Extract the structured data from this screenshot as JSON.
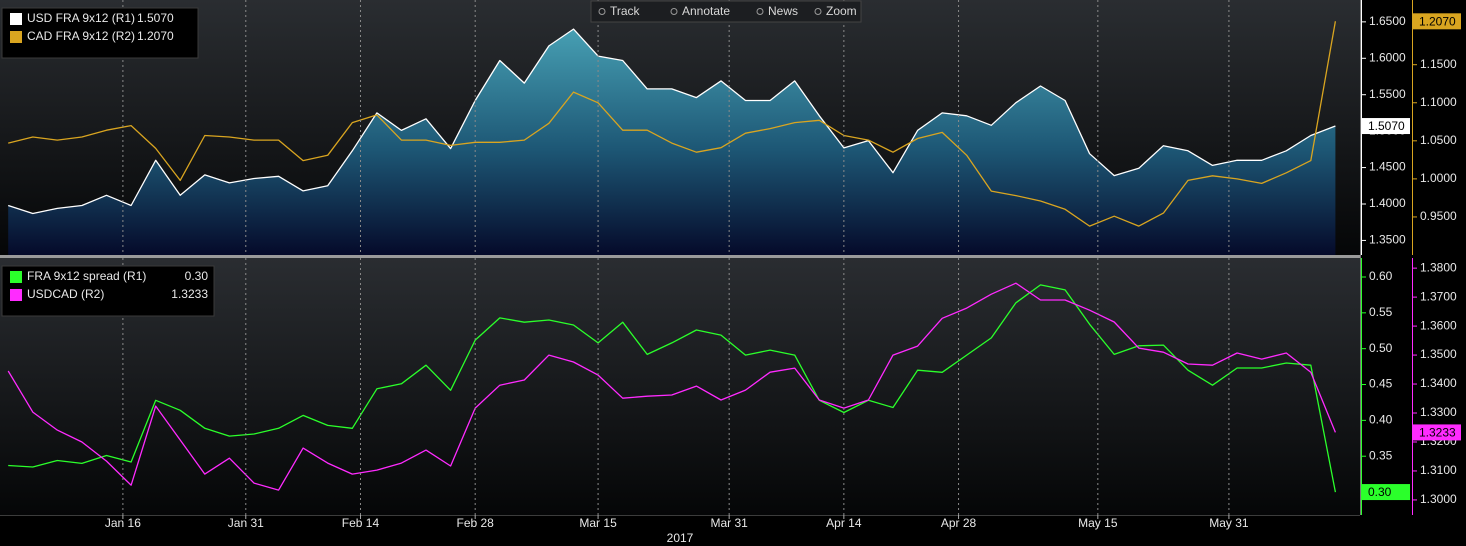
{
  "toolbar": [
    "Track",
    "Annotate",
    "News",
    "Zoom"
  ],
  "chart_data": [
    {
      "type": "line",
      "x": [
        "2017-01-02",
        "2017-01-05",
        "2017-01-08",
        "2017-01-11",
        "2017-01-14",
        "2017-01-17",
        "2017-01-20",
        "2017-01-23",
        "2017-01-26",
        "2017-01-29",
        "2017-02-01",
        "2017-02-04",
        "2017-02-07",
        "2017-02-10",
        "2017-02-13",
        "2017-02-16",
        "2017-02-19",
        "2017-02-22",
        "2017-02-25",
        "2017-02-28",
        "2017-03-03",
        "2017-03-06",
        "2017-03-09",
        "2017-03-12",
        "2017-03-15",
        "2017-03-18",
        "2017-03-21",
        "2017-03-24",
        "2017-03-27",
        "2017-03-30",
        "2017-04-02",
        "2017-04-05",
        "2017-04-08",
        "2017-04-11",
        "2017-04-14",
        "2017-04-17",
        "2017-04-20",
        "2017-04-23",
        "2017-04-26",
        "2017-04-29",
        "2017-05-02",
        "2017-05-05",
        "2017-05-08",
        "2017-05-11",
        "2017-05-14",
        "2017-05-17",
        "2017-05-20",
        "2017-05-23",
        "2017-05-26",
        "2017-05-29",
        "2017-06-01",
        "2017-06-04",
        "2017-06-07",
        "2017-06-10",
        "2017-06-13"
      ],
      "xlim": [
        "2017-01-01",
        "2017-06-16"
      ],
      "xticks": [
        "2017-01-16",
        "2017-01-31",
        "2017-02-14",
        "2017-02-28",
        "2017-03-15",
        "2017-03-31",
        "2017-04-14",
        "2017-04-28",
        "2017-05-15",
        "2017-05-31"
      ],
      "ylim": [
        1.33,
        1.68
      ],
      "yticks": [
        {
          "value": 1.35,
          "label": "1.3500"
        },
        {
          "value": 1.4,
          "label": "1.4000"
        },
        {
          "value": 1.45,
          "label": "1.4500"
        },
        {
          "value": 1.5,
          "label": "1.5000"
        },
        {
          "value": 1.55,
          "label": "1.5500"
        },
        {
          "value": 1.6,
          "label": "1.6000"
        },
        {
          "value": 1.65,
          "label": "1.6500"
        }
      ],
      "y2lim": [
        0.9,
        1.235
      ],
      "y2ticks": [
        {
          "value": 0.95,
          "label": "0.9500"
        },
        {
          "value": 1.0,
          "label": "1.0000"
        },
        {
          "value": 1.05,
          "label": "1.0500"
        },
        {
          "value": 1.1,
          "label": "1.1000"
        },
        {
          "value": 1.15,
          "label": "1.1500"
        }
      ],
      "grid": true,
      "series": [
        {
          "name": "USD FRA 9x12 (R1)",
          "color": "#ffffff",
          "area": true,
          "values": [
            1.398,
            1.387,
            1.394,
            1.398,
            1.412,
            1.398,
            1.46,
            1.412,
            1.44,
            1.429,
            1.435,
            1.438,
            1.418,
            1.425,
            1.473,
            1.525,
            1.501,
            1.517,
            1.476,
            1.542,
            1.597,
            1.566,
            1.617,
            1.64,
            1.603,
            1.597,
            1.558,
            1.558,
            1.546,
            1.569,
            1.542,
            1.542,
            1.569,
            1.521,
            1.477,
            1.487,
            1.443,
            1.501,
            1.525,
            1.521,
            1.508,
            1.539,
            1.562,
            1.542,
            1.469,
            1.439,
            1.449,
            1.48,
            1.473,
            1.453,
            1.46,
            1.46,
            1.473,
            1.494,
            1.507
          ],
          "value_labels": [
            null,
            null,
            null,
            null,
            null,
            null,
            null,
            null,
            null,
            null,
            null,
            null,
            null,
            null,
            null,
            null,
            null,
            null,
            null,
            null,
            null,
            null,
            null,
            null,
            null,
            null,
            null,
            null,
            null,
            null,
            null,
            null,
            null,
            null,
            null,
            null,
            null,
            null,
            null,
            null,
            null,
            null,
            null,
            null,
            null,
            null,
            null,
            null,
            null,
            null,
            null,
            null,
            null,
            null,
            "1.5070"
          ]
        },
        {
          "name": "CAD FRA 9x12 (R2)",
          "color": "#d9a520",
          "axis": "y2",
          "values": [
            1.047,
            1.055,
            1.051,
            1.055,
            1.064,
            1.07,
            1.04,
            0.998,
            1.057,
            1.055,
            1.051,
            1.051,
            1.024,
            1.031,
            1.074,
            1.084,
            1.051,
            1.051,
            1.044,
            1.048,
            1.048,
            1.051,
            1.073,
            1.114,
            1.1,
            1.064,
            1.064,
            1.047,
            1.035,
            1.041,
            1.06,
            1.066,
            1.074,
            1.077,
            1.057,
            1.051,
            1.035,
            1.053,
            1.061,
            1.031,
            0.984,
            0.978,
            0.971,
            0.96,
            0.938,
            0.951,
            0.938,
            0.955,
            0.998,
            1.004,
            1.0,
            0.994,
            1.008,
            1.024,
            1.207
          ],
          "value_labels": [
            null,
            null,
            null,
            null,
            null,
            null,
            null,
            null,
            null,
            null,
            null,
            null,
            null,
            null,
            null,
            null,
            null,
            null,
            null,
            null,
            null,
            null,
            null,
            null,
            null,
            null,
            null,
            null,
            null,
            null,
            null,
            null,
            null,
            null,
            null,
            null,
            null,
            null,
            null,
            null,
            null,
            null,
            null,
            null,
            null,
            null,
            null,
            null,
            null,
            null,
            null,
            null,
            null,
            null,
            "1.2070"
          ]
        }
      ]
    },
    {
      "type": "line",
      "x": [
        "2017-01-02",
        "2017-01-05",
        "2017-01-08",
        "2017-01-11",
        "2017-01-14",
        "2017-01-17",
        "2017-01-20",
        "2017-01-23",
        "2017-01-26",
        "2017-01-29",
        "2017-02-01",
        "2017-02-04",
        "2017-02-07",
        "2017-02-10",
        "2017-02-13",
        "2017-02-16",
        "2017-02-19",
        "2017-02-22",
        "2017-02-25",
        "2017-02-28",
        "2017-03-03",
        "2017-03-06",
        "2017-03-09",
        "2017-03-12",
        "2017-03-15",
        "2017-03-18",
        "2017-03-21",
        "2017-03-24",
        "2017-03-27",
        "2017-03-30",
        "2017-04-02",
        "2017-04-05",
        "2017-04-08",
        "2017-04-11",
        "2017-04-14",
        "2017-04-17",
        "2017-04-20",
        "2017-04-23",
        "2017-04-26",
        "2017-04-29",
        "2017-05-02",
        "2017-05-05",
        "2017-05-08",
        "2017-05-11",
        "2017-05-14",
        "2017-05-17",
        "2017-05-20",
        "2017-05-23",
        "2017-05-26",
        "2017-05-29",
        "2017-06-01",
        "2017-06-04",
        "2017-06-07",
        "2017-06-10",
        "2017-06-13"
      ],
      "xlim": [
        "2017-01-01",
        "2017-06-16"
      ],
      "xticks": [
        {
          "value": "2017-01-16",
          "label": "Jan 16"
        },
        {
          "value": "2017-01-31",
          "label": "Jan 31"
        },
        {
          "value": "2017-02-14",
          "label": "Feb 14"
        },
        {
          "value": "2017-02-28",
          "label": "Feb 28"
        },
        {
          "value": "2017-03-15",
          "label": "Mar 15"
        },
        {
          "value": "2017-03-31",
          "label": "Mar 31"
        },
        {
          "value": "2017-04-14",
          "label": "Apr 14"
        },
        {
          "value": "2017-04-28",
          "label": "Apr 28"
        },
        {
          "value": "2017-05-15",
          "label": "May 15"
        },
        {
          "value": "2017-05-31",
          "label": "May 31"
        }
      ],
      "xlabel": "2017",
      "ylim": [
        0.268,
        0.6265
      ],
      "yticks": [
        {
          "value": 0.3,
          "label": "0.30"
        },
        0.35,
        {
          "value": 0.4,
          "label": "0.40"
        },
        0.45,
        {
          "value": 0.5,
          "label": "0.50"
        },
        0.55,
        {
          "value": 0.6,
          "label": "0.60"
        }
      ],
      "y2lim": [
        1.2948,
        1.3835
      ],
      "y2ticks": [
        {
          "value": 1.3,
          "label": "1.3000"
        },
        {
          "value": 1.31,
          "label": "1.3100"
        },
        {
          "value": 1.32,
          "label": "1.3200"
        },
        {
          "value": 1.33,
          "label": "1.3300"
        },
        {
          "value": 1.34,
          "label": "1.3400"
        },
        {
          "value": 1.35,
          "label": "1.3500"
        },
        {
          "value": 1.36,
          "label": "1.3600"
        },
        {
          "value": 1.37,
          "label": "1.3700"
        },
        {
          "value": 1.38,
          "label": "1.3800"
        }
      ],
      "grid": true,
      "series": [
        {
          "name": "FRA 9x12 spread (R1)",
          "color": "#2bff2b",
          "values": [
            0.337,
            0.335,
            0.344,
            0.34,
            0.351,
            0.342,
            0.428,
            0.414,
            0.389,
            0.378,
            0.381,
            0.389,
            0.407,
            0.393,
            0.389,
            0.444,
            0.451,
            0.477,
            0.442,
            0.512,
            0.543,
            0.537,
            0.54,
            0.533,
            0.508,
            0.537,
            0.492,
            0.508,
            0.526,
            0.519,
            0.491,
            0.498,
            0.491,
            0.428,
            0.411,
            0.428,
            0.418,
            0.47,
            0.467,
            0.491,
            0.515,
            0.564,
            0.589,
            0.582,
            0.534,
            0.492,
            0.504,
            0.505,
            0.47,
            0.449,
            0.473,
            0.473,
            0.48,
            0.477,
            0.3
          ],
          "value_labels": [
            null,
            null,
            null,
            null,
            null,
            null,
            null,
            null,
            null,
            null,
            null,
            null,
            null,
            null,
            null,
            null,
            null,
            null,
            null,
            null,
            null,
            null,
            null,
            null,
            null,
            null,
            null,
            null,
            null,
            null,
            null,
            null,
            null,
            null,
            null,
            null,
            null,
            null,
            null,
            null,
            null,
            null,
            null,
            null,
            null,
            null,
            null,
            null,
            null,
            null,
            null,
            null,
            null,
            null,
            "0.30"
          ]
        },
        {
          "name": "USDCAD (R2)",
          "color": "#ff2bff",
          "axis": "y2",
          "values": [
            1.3445,
            1.3303,
            1.3241,
            1.32,
            1.3134,
            1.3051,
            1.3324,
            1.3207,
            1.3089,
            1.3144,
            1.3058,
            1.3034,
            1.3179,
            1.3127,
            1.3089,
            1.3103,
            1.3127,
            1.3172,
            1.3117,
            1.3317,
            1.3396,
            1.3414,
            1.35,
            1.3476,
            1.3431,
            1.3351,
            1.3358,
            1.3362,
            1.3393,
            1.3345,
            1.3379,
            1.3441,
            1.3455,
            1.3345,
            1.3317,
            1.3345,
            1.35,
            1.3531,
            1.3627,
            1.3662,
            1.371,
            1.3748,
            1.369,
            1.369,
            1.3655,
            1.3614,
            1.3524,
            1.351,
            1.3469,
            1.3465,
            1.3507,
            1.3486,
            1.3507,
            1.3441,
            1.3233
          ],
          "value_labels": [
            null,
            null,
            null,
            null,
            null,
            null,
            null,
            null,
            null,
            null,
            null,
            null,
            null,
            null,
            null,
            null,
            null,
            null,
            null,
            null,
            null,
            null,
            null,
            null,
            null,
            null,
            null,
            null,
            null,
            null,
            null,
            null,
            null,
            null,
            null,
            null,
            null,
            null,
            null,
            null,
            null,
            null,
            null,
            null,
            null,
            null,
            null,
            null,
            null,
            null,
            null,
            null,
            null,
            null,
            "1.3233"
          ]
        }
      ]
    }
  ]
}
